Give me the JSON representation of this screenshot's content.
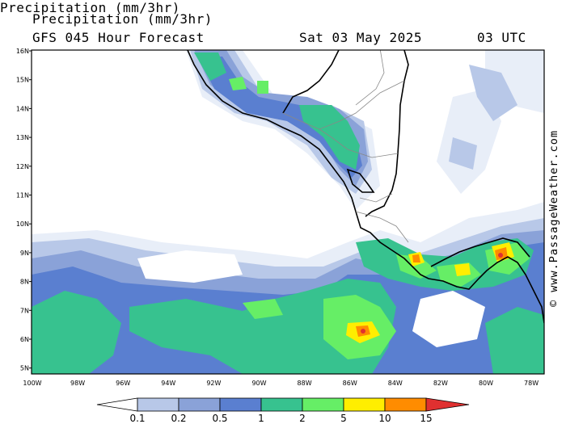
{
  "header": {
    "title": "Precipitation (mm/3hr)",
    "subtitle": "GFS 045 Hour Forecast",
    "date": "Sat 03 May 2025",
    "time": "03 UTC"
  },
  "credit": "© www.PassageWeather.com",
  "axes": {
    "lat_labels": [
      "16N",
      "15N",
      "14N",
      "13N",
      "12N",
      "11N",
      "10N",
      "9N",
      "8N",
      "7N",
      "6N",
      "5N"
    ],
    "lon_labels": [
      "100W",
      "98W",
      "96W",
      "94W",
      "92W",
      "90W",
      "88W",
      "86W",
      "84W",
      "82W",
      "80W",
      "78W"
    ],
    "lat_range": [
      5,
      16
    ],
    "lon_range": [
      -100,
      -77.5
    ]
  },
  "legend": {
    "labels": [
      "0.1",
      "0.2",
      "0.5",
      "1",
      "2",
      "5",
      "10",
      "15"
    ],
    "colors": [
      "#e8eef8",
      "#b8c8e8",
      "#8aa2d8",
      "#5a7fd0",
      "#37c28f",
      "#66ee66",
      "#ffee00",
      "#ff8c00",
      "#e03030"
    ]
  },
  "colors": {
    "land_border": "#000000",
    "inner_border": "#888888"
  }
}
